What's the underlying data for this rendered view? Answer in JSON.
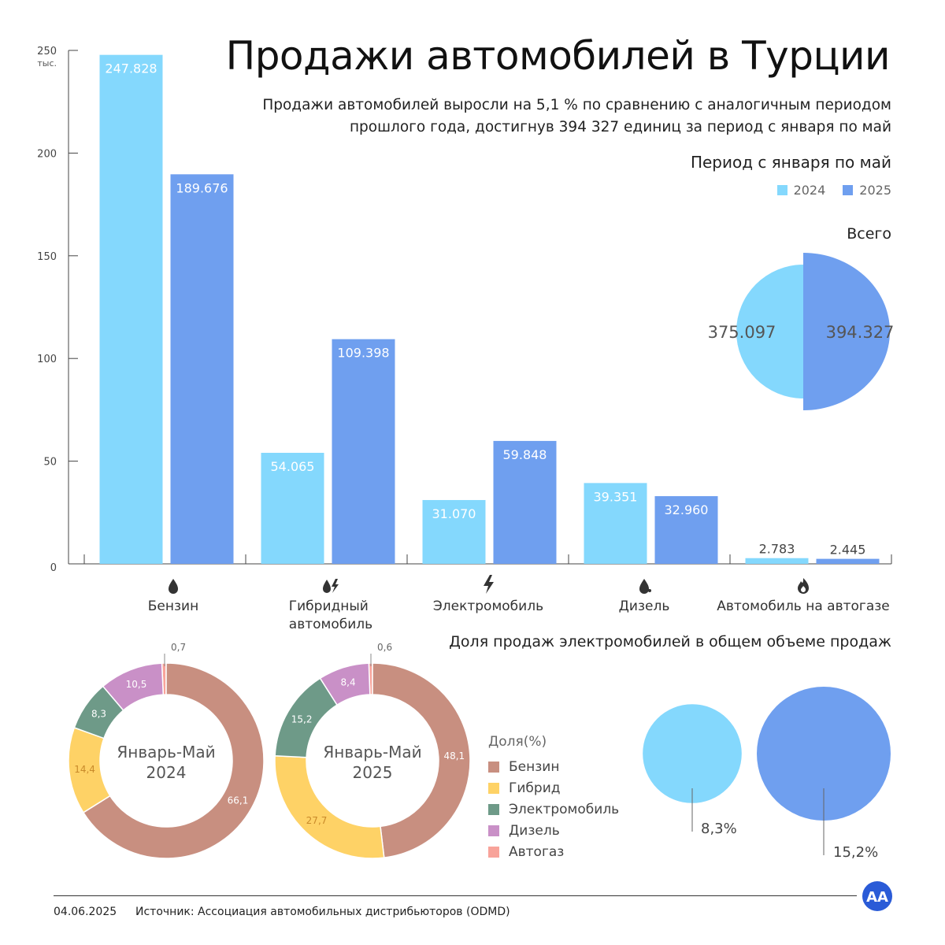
{
  "header": {
    "title": "Продажи автомобилей в Турции",
    "subtitle": "Продажи автомобилей выросли на 5,1 % по сравнению с аналогичным периодом прошлого года, достигнув 394 327 единиц за период с января по май",
    "period": "Период с января по май"
  },
  "colors": {
    "y2024": "#84d8fd",
    "y2025": "#6f9fef",
    "benzin": "#c88f80",
    "gibrid": "#fed266",
    "electro": "#6e9a88",
    "dizel": "#c990c7",
    "avtogaz": "#f8a39a"
  },
  "chart_data": [
    {
      "type": "bar",
      "y_unit": "тыс.",
      "ylim": [
        0,
        250
      ],
      "yticks": [
        0,
        50,
        100,
        150,
        200,
        250
      ],
      "categories": [
        "Бензин",
        "Гибридный автомобиль",
        "Электромобиль",
        "Дизель",
        "Автомобиль на автогазе"
      ],
      "category_icons": [
        "drop-icon",
        "hybrid-icon",
        "lightning-icon",
        "oil-drop-icon",
        "flame-icon"
      ],
      "legend": [
        "2024",
        "2025"
      ],
      "series": [
        {
          "name": "2024",
          "values": [
            247828,
            54065,
            31070,
            39351,
            2783
          ],
          "labels": [
            "247.828",
            "54.065",
            "31.070",
            "39.351",
            "2.783"
          ]
        },
        {
          "name": "2025",
          "values": [
            189676,
            109398,
            59848,
            32960,
            2445
          ],
          "labels": [
            "189.676",
            "109.398",
            "59.848",
            "32.960",
            "2.445"
          ]
        }
      ]
    },
    {
      "type": "pie",
      "title": "Всего",
      "categories": [
        "2024",
        "2025"
      ],
      "values": [
        375097,
        394327
      ],
      "labels": [
        "375.097",
        "394.327"
      ]
    },
    {
      "type": "pie",
      "subtype": "donut",
      "center_label": [
        "Январь-Май",
        "2024"
      ],
      "categories": [
        "Бензин",
        "Гибрид",
        "Электромобиль",
        "Дизель",
        "Автогаз"
      ],
      "values": [
        66.1,
        14.4,
        8.3,
        10.5,
        0.7
      ],
      "labels": [
        "66,1",
        "14,4",
        "8,3",
        "10,5",
        "0,7"
      ]
    },
    {
      "type": "pie",
      "subtype": "donut",
      "center_label": [
        "Январь-Май",
        "2025"
      ],
      "categories": [
        "Бензин",
        "Гибрид",
        "Электромобиль",
        "Дизель",
        "Автогаз"
      ],
      "values": [
        48.1,
        27.7,
        15.2,
        8.4,
        0.6
      ],
      "labels": [
        "48,1",
        "27,7",
        "15,2",
        "8,4",
        "0,6"
      ]
    },
    {
      "type": "bubble",
      "title": "Доля продаж электромобилей в общем объеме продаж",
      "categories": [
        "2024",
        "2025"
      ],
      "values": [
        8.3,
        15.2
      ],
      "labels": [
        "8,3%",
        "15,2%"
      ]
    }
  ],
  "share_legend": {
    "title": "Доля(%)",
    "items": [
      "Бензин",
      "Гибрид",
      "Электромобиль",
      "Дизель",
      "Автогаз"
    ]
  },
  "footer": {
    "date": "04.06.2025",
    "source": "Источник: Ассоциация автомобильных дистрибьюторов (ODMD)",
    "logo_text": "AA"
  }
}
